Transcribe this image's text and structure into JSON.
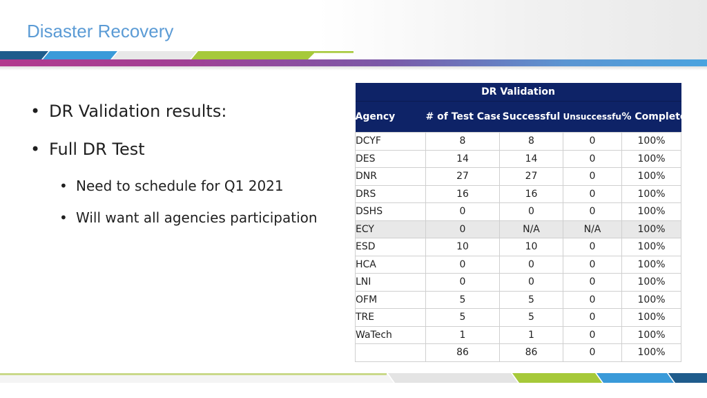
{
  "slide": {
    "title": "Disaster Recovery"
  },
  "bullets": [
    {
      "text": "DR Validation results:",
      "level": 1
    },
    {
      "text": "Full DR Test",
      "level": 1
    },
    {
      "text": "Need to schedule for Q1 2021",
      "level": 2
    },
    {
      "text": "Will want all agencies participation",
      "level": 2
    }
  ],
  "table": {
    "caption": "DR Validation",
    "columns": [
      "Agency",
      "# of Test Cases",
      "Successful",
      "Unsuccessful",
      "% Complete"
    ],
    "rows": [
      [
        "DCYF",
        "8",
        "8",
        "0",
        "100%"
      ],
      [
        "DES",
        "14",
        "14",
        "0",
        "100%"
      ],
      [
        "DNR",
        "27",
        "27",
        "0",
        "100%"
      ],
      [
        "DRS",
        "16",
        "16",
        "0",
        "100%"
      ],
      [
        "DSHS",
        "0",
        "0",
        "0",
        "100%"
      ],
      [
        "ECY",
        "0",
        "N/A",
        "N/A",
        "100%"
      ],
      [
        "ESD",
        "10",
        "10",
        "0",
        "100%"
      ],
      [
        "HCA",
        "0",
        "0",
        "0",
        "100%"
      ],
      [
        "LNI",
        "0",
        "0",
        "0",
        "100%"
      ],
      [
        "OFM",
        "5",
        "5",
        "0",
        "100%"
      ],
      [
        "TRE",
        "5",
        "5",
        "0",
        "100%"
      ],
      [
        "WaTech",
        "1",
        "1",
        "0",
        "100%"
      ],
      [
        "",
        "86",
        "86",
        "0",
        "100%"
      ]
    ],
    "highlighted_row": 5
  },
  "colors": {
    "title": "#5b9bd5",
    "table_header": "#0e2367",
    "highlight_row": "#e8e8e8",
    "stripe_blue": "#3a9ad9",
    "stripe_green": "#a6c93a",
    "stripe_navy": "#1f5c8c",
    "band_magenta": "#b23a8e",
    "band_blue": "#4aa3df"
  }
}
